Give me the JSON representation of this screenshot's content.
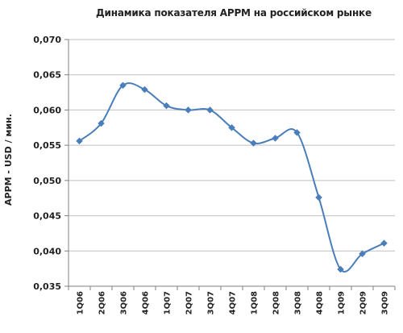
{
  "chart_data": {
    "type": "line",
    "title": "Динамика показателя APPM на российском рынке",
    "xlabel": "",
    "ylabel": "APPM - USD / мин.",
    "categories": [
      "1Q06",
      "2Q06",
      "3Q06",
      "4Q06",
      "1Q07",
      "2Q07",
      "3Q07",
      "4Q07",
      "1Q08",
      "2Q08",
      "3Q08",
      "4Q08",
      "1Q09",
      "2Q09",
      "3Q09"
    ],
    "values": [
      0.0556,
      0.0581,
      0.0635,
      0.0629,
      0.0606,
      0.06,
      0.06,
      0.0575,
      0.0553,
      0.056,
      0.0568,
      0.0476,
      0.0374,
      0.0396,
      0.0411
    ],
    "ylim": [
      0.035,
      0.07
    ],
    "yticks": [
      0.035,
      0.04,
      0.045,
      0.05,
      0.055,
      0.06,
      0.065,
      0.07
    ],
    "ytick_labels": [
      "0,035",
      "0,040",
      "0,045",
      "0,050",
      "0,055",
      "0,060",
      "0,065",
      "0,070"
    ],
    "grid": true,
    "legend": "none",
    "colors": {
      "series": "#4a7ebb",
      "grid": "#bfbfbf",
      "axis": "#808080"
    }
  }
}
